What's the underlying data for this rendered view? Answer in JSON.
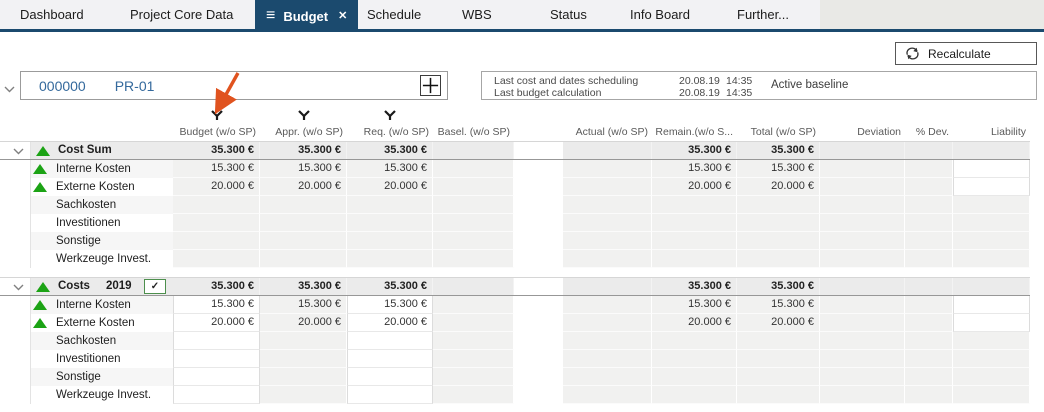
{
  "icons": {
    "menu": "≡",
    "close": "✕",
    "check": "✓"
  },
  "tabs": {
    "items": [
      {
        "label": "Dashboard",
        "active": false
      },
      {
        "label": "Project Core Data",
        "active": false
      },
      {
        "label": "Budget",
        "active": true
      },
      {
        "label": "Schedule",
        "active": false
      },
      {
        "label": "WBS",
        "active": false
      },
      {
        "label": "Status",
        "active": false
      },
      {
        "label": "Info Board",
        "active": false
      },
      {
        "label": "Further...",
        "active": false
      }
    ]
  },
  "toolbar": {
    "recalculate": "Recalculate"
  },
  "project": {
    "id": "000000",
    "code": "PR-01",
    "info": {
      "line1_label": "Last cost and dates scheduling",
      "line1_date": "20.08.19",
      "line1_time": "14:35",
      "line2_label": "Last budget calculation",
      "line2_date": "20.08.19",
      "line2_time": "14:35",
      "baseline": "Active baseline"
    }
  },
  "table": {
    "columns": [
      {
        "label": "Budget (w/o SP)",
        "filter": true
      },
      {
        "label": "Appr. (w/o SP)",
        "filter": true
      },
      {
        "label": "Req. (w/o SP)",
        "filter": true
      },
      {
        "label": "Basel. (w/o SP)",
        "filter": false
      },
      {
        "label": "Actual (w/o SP)",
        "filter": false
      },
      {
        "label": "Remain.(w/o S...",
        "filter": false
      },
      {
        "label": "Total (w/o SP)",
        "filter": false
      },
      {
        "label": "Deviation",
        "filter": false
      },
      {
        "label": "% Dev.",
        "filter": false
      },
      {
        "label": "Liability",
        "filter": false
      }
    ],
    "blocks": [
      {
        "title": "Cost Sum",
        "year": "",
        "checkbox": false,
        "group_values": [
          "35.300 €",
          "35.300 €",
          "35.300 €",
          "",
          "",
          "35.300 €",
          "35.300 €",
          "",
          "",
          ""
        ],
        "rows": [
          {
            "label": "Interne Kosten",
            "indicator": true,
            "values": [
              "15.300 €",
              "15.300 €",
              "15.300 €",
              "",
              "",
              "15.300 €",
              "15.300 €",
              "",
              "",
              ""
            ]
          },
          {
            "label": "Externe Kosten",
            "indicator": true,
            "values": [
              "20.000 €",
              "20.000 €",
              "20.000 €",
              "",
              "",
              "20.000 €",
              "20.000 €",
              "",
              "",
              ""
            ]
          },
          {
            "label": "Sachkosten",
            "indicator": false,
            "values": [
              "",
              "",
              "",
              "",
              "",
              "",
              "",
              "",
              "",
              ""
            ]
          },
          {
            "label": "Investitionen",
            "indicator": false,
            "values": [
              "",
              "",
              "",
              "",
              "",
              "",
              "",
              "",
              "",
              ""
            ]
          },
          {
            "label": "Sonstige",
            "indicator": false,
            "values": [
              "",
              "",
              "",
              "",
              "",
              "",
              "",
              "",
              "",
              ""
            ]
          },
          {
            "label": "Werkzeuge Invest.",
            "indicator": false,
            "values": [
              "",
              "",
              "",
              "",
              "",
              "",
              "",
              "",
              "",
              ""
            ]
          }
        ]
      },
      {
        "title": "Costs",
        "year": "2019",
        "checkbox": true,
        "group_values": [
          "35.300 €",
          "35.300 €",
          "35.300 €",
          "",
          "",
          "35.300 €",
          "35.300 €",
          "",
          "",
          ""
        ],
        "rows": [
          {
            "label": "Interne Kosten",
            "indicator": true,
            "values": [
              "15.300 €",
              "15.300 €",
              "15.300 €",
              "",
              "",
              "15.300 €",
              "15.300 €",
              "",
              "",
              ""
            ]
          },
          {
            "label": "Externe Kosten",
            "indicator": true,
            "values": [
              "20.000 €",
              "20.000 €",
              "20.000 €",
              "",
              "",
              "20.000 €",
              "20.000 €",
              "",
              "",
              ""
            ]
          },
          {
            "label": "Sachkosten",
            "indicator": false,
            "values": [
              "",
              "",
              "",
              "",
              "",
              "",
              "",
              "",
              "",
              ""
            ]
          },
          {
            "label": "Investitionen",
            "indicator": false,
            "values": [
              "",
              "",
              "",
              "",
              "",
              "",
              "",
              "",
              "",
              ""
            ]
          },
          {
            "label": "Sonstige",
            "indicator": false,
            "values": [
              "",
              "",
              "",
              "",
              "",
              "",
              "",
              "",
              "",
              ""
            ]
          },
          {
            "label": "Werkzeuge Invest.",
            "indicator": false,
            "values": [
              "",
              "",
              "",
              "",
              "",
              "",
              "",
              "",
              "",
              ""
            ]
          }
        ]
      }
    ]
  },
  "colors": {
    "accent_navy": "#1b4a6e",
    "link_blue": "#34699c",
    "positive_green": "#1ca315",
    "annotation_orange": "#e0531f"
  }
}
